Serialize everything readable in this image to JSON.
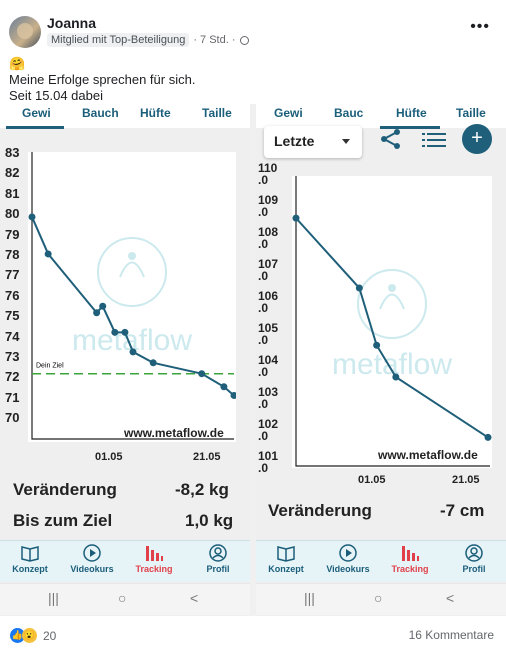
{
  "post": {
    "author": "Joanna",
    "badge": "Mitglied mit Top-Beteiligung",
    "time": "· 7 Std. ·",
    "emoji": "🤗",
    "line1": "Meine Erfolge sprechen für sich.",
    "line2": "Seit 15.04 dabei"
  },
  "screen_left": {
    "tabs": [
      "Gewi",
      "Bauch",
      "Hüfte",
      "Taille"
    ],
    "watermark_logo": "metaflow",
    "watermark_url": "www.metaflow.de",
    "goal_label": "Dein Ziel",
    "stat1_label": "Veränderung",
    "stat1_value": "-8,2 kg",
    "stat2_label": "Bis zum Ziel",
    "stat2_value": "1,0 kg"
  },
  "screen_right": {
    "tabs": [
      "Gewi",
      "Bauc",
      "Hüfte",
      "Taille"
    ],
    "dropdown": "Letzte",
    "watermark_logo": "metaflow",
    "watermark_url": "www.metaflow.de",
    "stat1_label": "Veränderung",
    "stat1_value": "-7 cm",
    "fab_label": "+"
  },
  "nav": {
    "items": [
      "Konzept",
      "Videokurs",
      "Tracking",
      "Profil"
    ],
    "active": "Tracking"
  },
  "system_nav": [
    "|||",
    "○",
    "<"
  ],
  "footer": {
    "reactions_count": "20",
    "comments": "16 Kommentare"
  },
  "colors": {
    "line": "#1f5f7a",
    "goal": "#3aa53a",
    "nav_active": "#e0404a",
    "nav_bg": "#e6f3f7"
  },
  "chart_data": [
    {
      "type": "line",
      "title": "",
      "xlabel": "",
      "ylabel": "",
      "ylim": [
        70,
        83
      ],
      "yticks": [
        "83",
        "82",
        "81",
        "80",
        "79",
        "78",
        "77",
        "76",
        "75",
        "74",
        "73",
        "72",
        "71",
        "70"
      ],
      "xticks": [
        "01.05",
        "21.05"
      ],
      "goal": 73,
      "goal_label": "Dein Ziel",
      "series": [
        {
          "values": [
            {
              "x": 0.0,
              "y": 80.2
            },
            {
              "x": 0.08,
              "y": 78.5
            },
            {
              "x": 0.32,
              "y": 75.8
            },
            {
              "x": 0.35,
              "y": 76.1
            },
            {
              "x": 0.41,
              "y": 74.9
            },
            {
              "x": 0.46,
              "y": 74.9
            },
            {
              "x": 0.5,
              "y": 74.0
            },
            {
              "x": 0.6,
              "y": 73.5
            },
            {
              "x": 0.84,
              "y": 73.0
            },
            {
              "x": 0.95,
              "y": 72.4
            },
            {
              "x": 1.0,
              "y": 72.0
            }
          ]
        }
      ]
    },
    {
      "type": "line",
      "title": "",
      "xlabel": "",
      "ylabel": "",
      "ylim": [
        101,
        110
      ],
      "yticks": [
        "110\n.0",
        "109\n.0",
        "108\n.0",
        "107\n.0",
        "106\n.0",
        "105\n.0",
        "104\n.0",
        "103\n.0",
        "102\n.0",
        "101\n.0"
      ],
      "xticks": [
        "01.05",
        "21.05"
      ],
      "series": [
        {
          "values": [
            {
              "x": 0.0,
              "y": 108.8
            },
            {
              "x": 0.33,
              "y": 106.6
            },
            {
              "x": 0.42,
              "y": 104.8
            },
            {
              "x": 0.52,
              "y": 103.8
            },
            {
              "x": 1.0,
              "y": 101.9
            }
          ]
        }
      ]
    }
  ]
}
